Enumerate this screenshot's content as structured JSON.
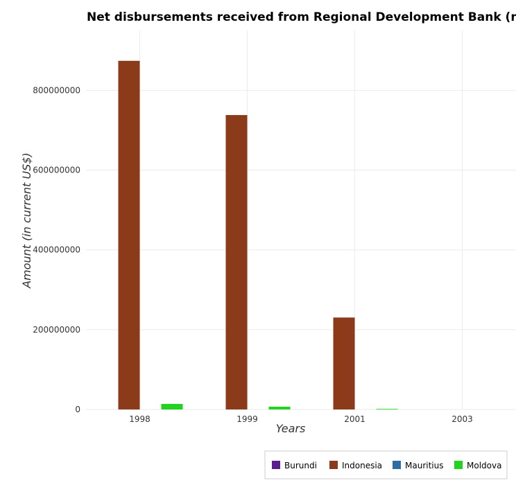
{
  "chart_data": {
    "type": "bar",
    "title": "Net disbursements received from Regional Development Bank (non-concessional)",
    "xlabel": "Years",
    "ylabel": "Amount (in current US$)",
    "categories": [
      "1998",
      "1999",
      "2001",
      "2003"
    ],
    "ylim": [
      0,
      950000000
    ],
    "yticks": [
      0,
      200000000,
      400000000,
      600000000,
      800000000
    ],
    "ytick_labels": [
      "0",
      "200000000",
      "400000000",
      "600000000",
      "800000000"
    ],
    "series": [
      {
        "name": "Burundi",
        "color": "#5a1f8f",
        "values": [
          0,
          0,
          0,
          0
        ]
      },
      {
        "name": "Indonesia",
        "color": "#8b3a1a",
        "values": [
          874000000,
          738000000,
          230500000,
          0
        ]
      },
      {
        "name": "Mauritius",
        "color": "#2e6da4",
        "values": [
          0,
          0,
          0,
          0
        ]
      },
      {
        "name": "Moldova",
        "color": "#1fd31f",
        "values": [
          14000000,
          7000000,
          1500000,
          0
        ]
      }
    ],
    "legend_position": "bottom-right",
    "grid": true
  }
}
